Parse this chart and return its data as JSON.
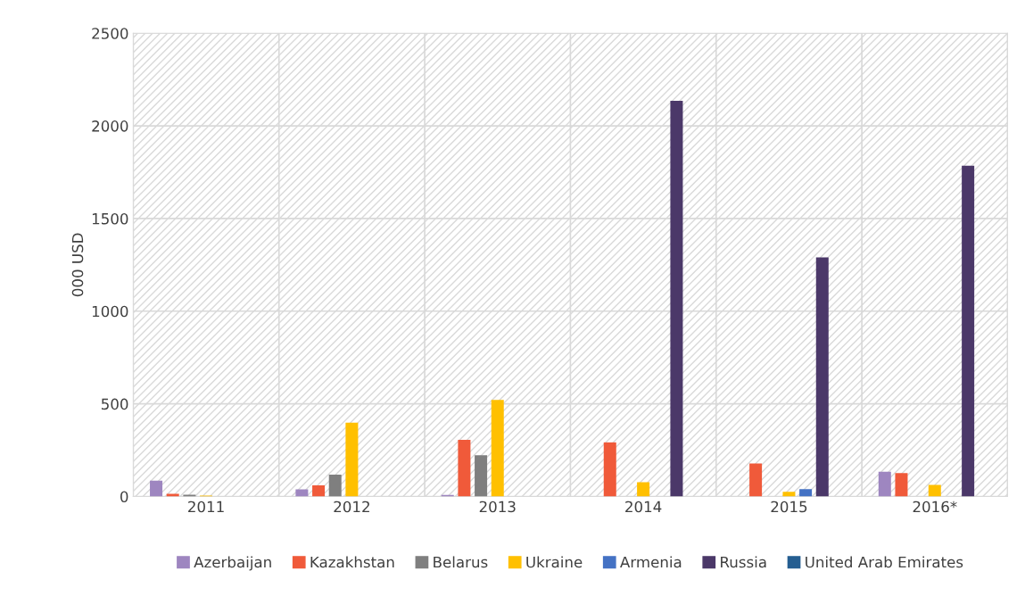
{
  "chart_data": {
    "type": "bar",
    "ylabel": "000 USD",
    "categories": [
      "2011",
      "2012",
      "2013",
      "2014",
      "2015",
      "2016*"
    ],
    "series": [
      {
        "name": "Azerbaijan",
        "color": "#9e86c0",
        "values": [
          86,
          39,
          8,
          null,
          null,
          134
        ]
      },
      {
        "name": "Kazakhstan",
        "color": "#f05a3a",
        "values": [
          15,
          60,
          306,
          292,
          178,
          126
        ]
      },
      {
        "name": "Belarus",
        "color": "#7f7f7f",
        "values": [
          10,
          118,
          223,
          null,
          null,
          null
        ]
      },
      {
        "name": "Ukraine",
        "color": "#ffc000",
        "values": [
          5,
          398,
          521,
          77,
          25,
          63
        ]
      },
      {
        "name": "Armenia",
        "color": "#4472c4",
        "values": [
          null,
          null,
          null,
          null,
          40,
          null
        ]
      },
      {
        "name": "Russia",
        "color": "#4b3869",
        "values": [
          null,
          null,
          null,
          2135,
          1290,
          1785
        ]
      },
      {
        "name": "United Arab Emirates",
        "color": "#255e91",
        "values": [
          null,
          null,
          null,
          null,
          null,
          null
        ]
      }
    ],
    "ylim": [
      0,
      2500
    ],
    "yticks": [
      0,
      500,
      1000,
      1500,
      2000,
      2500
    ],
    "grid": true,
    "legend": "bottom"
  }
}
